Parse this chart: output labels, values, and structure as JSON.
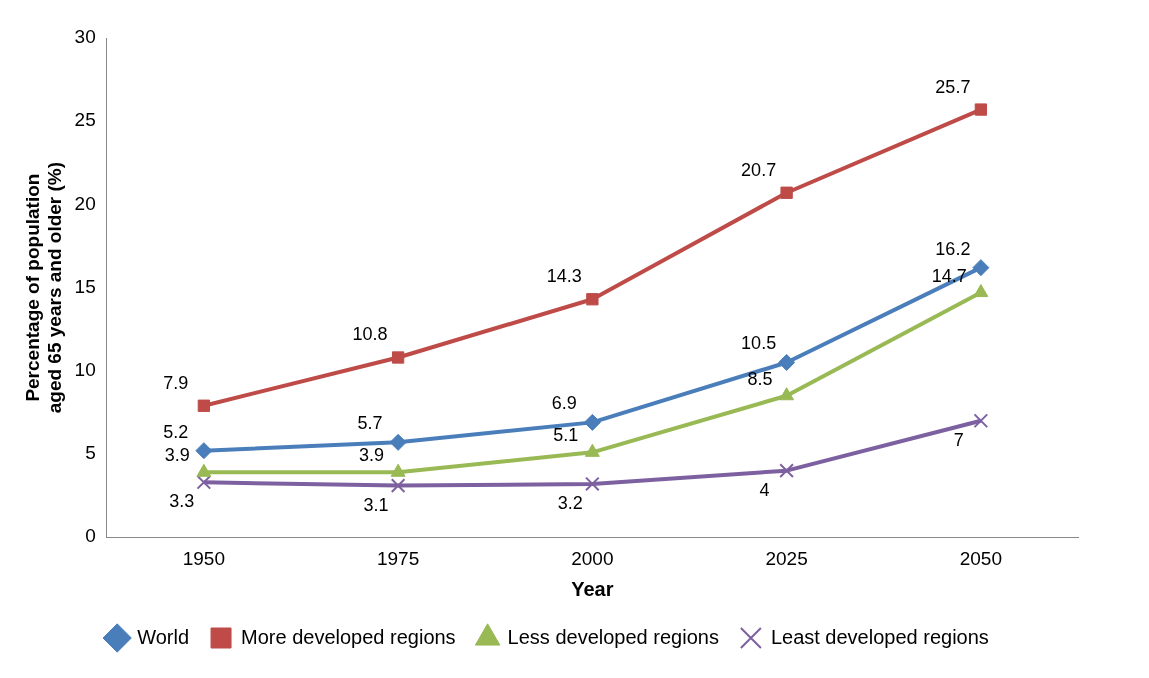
{
  "chart_data": {
    "type": "line",
    "xlabel": "Year",
    "ylabel": "Percentage of population aged 65 years and older (%)",
    "categories": [
      "1950",
      "1975",
      "2000",
      "2025",
      "2050"
    ],
    "series": [
      {
        "name": "World",
        "color": "#4a7ebb",
        "marker": "diamond",
        "values": [
          5.2,
          5.7,
          6.9,
          10.5,
          16.2
        ]
      },
      {
        "name": "More developed regions",
        "color": "#be4b48",
        "marker": "square",
        "values": [
          7.9,
          10.8,
          14.3,
          20.7,
          25.7
        ]
      },
      {
        "name": "Less developed regions",
        "color": "#98b954",
        "marker": "triangle",
        "values": [
          3.9,
          3.9,
          5.1,
          8.5,
          14.7
        ]
      },
      {
        "name": "Least developed regions",
        "color": "#7d60a0",
        "marker": "cross",
        "values": [
          3.3,
          3.1,
          3.2,
          4,
          7
        ]
      }
    ],
    "ylim": [
      0,
      30
    ],
    "yticks": [
      0,
      5,
      10,
      15,
      20,
      25,
      30
    ],
    "grid": false,
    "legend": "bottom",
    "data_labels": true,
    "line_style": "solid"
  }
}
